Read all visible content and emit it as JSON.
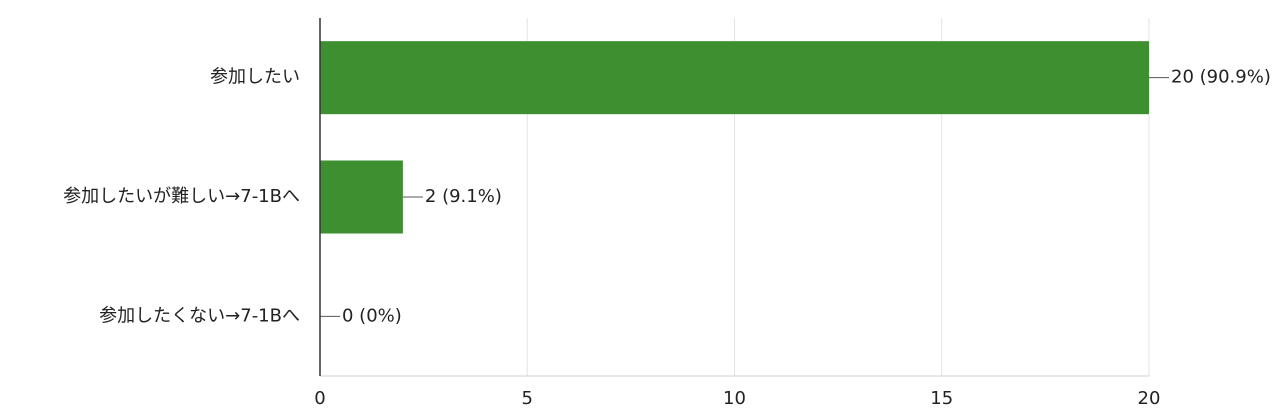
{
  "chart_data": {
    "type": "bar",
    "orientation": "horizontal",
    "categories": [
      "参加したい",
      "参加したいが難しい→7-1Bへ",
      "参加したくない→7-1Bへ"
    ],
    "values": [
      20,
      2,
      0
    ],
    "value_labels": [
      "20 (90.9%)",
      "2 (9.1%)",
      "0 (0%)"
    ],
    "color": "#3d8f2f",
    "xlim": [
      0,
      20
    ],
    "xticks": [
      0,
      5,
      10,
      15,
      20
    ],
    "grid": true
  }
}
